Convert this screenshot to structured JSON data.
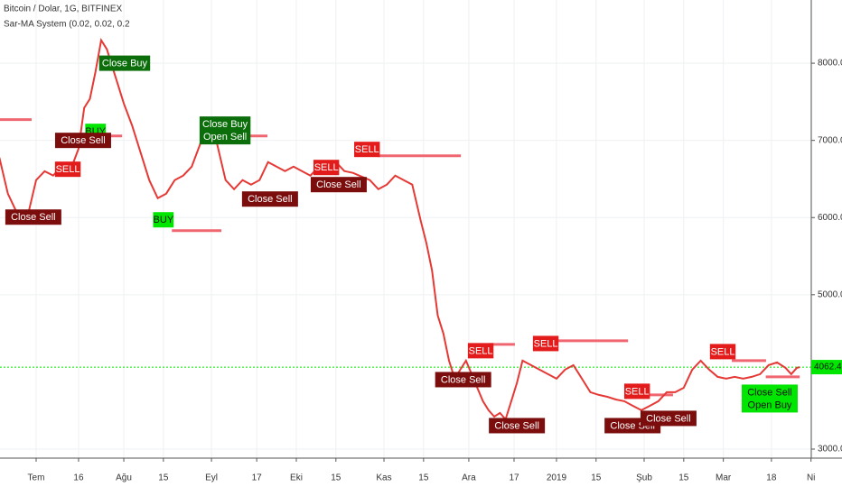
{
  "chart_data": {
    "type": "line",
    "title": "Bitcoin / Dolar, 1G, BITFINEX",
    "subtitle": "Sar-MA System (0.02, 0.02, 0.2",
    "x": [
      -13,
      -10,
      -7,
      -3,
      0,
      3,
      6,
      9,
      12,
      15,
      17,
      19,
      21,
      23,
      25,
      27,
      29,
      31,
      34,
      37,
      40,
      43,
      46,
      49,
      52,
      55,
      58,
      61,
      64,
      67,
      70,
      73,
      76,
      79,
      82,
      85,
      88,
      91,
      94,
      97,
      100,
      103,
      106,
      109,
      112,
      115,
      118,
      121,
      124,
      127,
      130,
      133,
      136,
      138,
      140,
      142,
      144,
      146,
      148,
      150,
      152,
      154,
      156,
      158,
      160,
      162,
      164,
      166,
      168,
      170,
      172,
      175,
      178,
      181,
      184,
      187,
      190,
      193,
      196,
      199,
      202,
      205,
      208,
      211,
      214,
      217,
      220,
      223,
      226,
      229,
      232,
      235,
      238,
      241,
      244,
      247,
      250,
      253,
      256,
      259,
      262,
      265,
      267,
      269,
      270
    ],
    "series": [
      {
        "color": "#e53935",
        "values": [
          6778,
          6310,
          6076,
          6018,
          6485,
          6600,
          6544,
          6660,
          6600,
          6895,
          7421,
          7538,
          7889,
          8298,
          8181,
          7947,
          7713,
          7480,
          7187,
          6836,
          6485,
          6251,
          6310,
          6485,
          6544,
          6660,
          6953,
          7070,
          6953,
          6485,
          6368,
          6485,
          6427,
          6485,
          6719,
          6660,
          6602,
          6660,
          6602,
          6544,
          6660,
          6626,
          6719,
          6602,
          6579,
          6532,
          6485,
          6368,
          6427,
          6544,
          6485,
          6427,
          5959,
          5667,
          5316,
          4731,
          4497,
          4146,
          3912,
          4029,
          4146,
          3971,
          3795,
          3620,
          3503,
          3421,
          3468,
          3386,
          3620,
          3854,
          4146,
          4088,
          4029,
          3971,
          3912,
          4029,
          4088,
          3912,
          3737,
          3702,
          3678,
          3643,
          3620,
          3561,
          3503,
          3561,
          3620,
          3737,
          3737,
          3795,
          4029,
          4146,
          4029,
          3936,
          3912,
          3936,
          3912,
          3936,
          3971,
          4088,
          4123,
          4053,
          3971,
          4053,
          4062
        ]
      }
    ],
    "xlim": [
      -12.78,
      274.1
    ],
    "ylim": [
      2883,
      8819
    ],
    "xticks": [
      {
        "value": 0,
        "label": "Tem"
      },
      {
        "value": 15,
        "label": "16"
      },
      {
        "value": 31,
        "label": "Ağu"
      },
      {
        "value": 45,
        "label": "15"
      },
      {
        "value": 62,
        "label": "Eyl"
      },
      {
        "value": 78,
        "label": "17"
      },
      {
        "value": 92,
        "label": "Eki"
      },
      {
        "value": 106,
        "label": "15"
      },
      {
        "value": 123,
        "label": "Kas"
      },
      {
        "value": 137,
        "label": "15"
      },
      {
        "value": 153,
        "label": "Ara"
      },
      {
        "value": 169,
        "label": "17"
      },
      {
        "value": 184,
        "label": "2019"
      },
      {
        "value": 198,
        "label": "15"
      },
      {
        "value": 215,
        "label": "Şub"
      },
      {
        "value": 229,
        "label": "15"
      },
      {
        "value": 243,
        "label": "Mar"
      },
      {
        "value": 260,
        "label": "18"
      },
      {
        "value": 274,
        "label": "Ni"
      }
    ],
    "yticks": [
      {
        "value": 3000,
        "label": "3000.0"
      },
      {
        "value": 5000,
        "label": "5000.0"
      },
      {
        "value": 6000,
        "label": "6000.0"
      },
      {
        "value": 7000,
        "label": "7000.0"
      },
      {
        "value": 8000,
        "label": "8000.0"
      }
    ],
    "grid": true,
    "current_price": 4062.4,
    "current_price_color": "#00e600",
    "sar_levels": [
      {
        "x": [
          -12.8,
          -1.6
        ],
        "y": 7269
      },
      {
        "x": [
          22.4,
          30.4
        ],
        "y": 7058
      },
      {
        "x": [
          48,
          65.5
        ],
        "y": 5830
      },
      {
        "x": [
          71.9,
          81.8
        ],
        "y": 7058
      },
      {
        "x": [
          120.8,
          150.2
        ],
        "y": 6801
      },
      {
        "x": [
          160.4,
          169.3
        ],
        "y": 4357
      },
      {
        "x": [
          183.4,
          209.3
        ],
        "y": 4404
      },
      {
        "x": [
          215.7,
          225.2
        ],
        "y": 3702
      },
      {
        "x": [
          246,
          258.1
        ],
        "y": 4146
      },
      {
        "x": [
          258,
          270
        ],
        "y": 3936
      }
    ],
    "sar_color": "#f06670",
    "signals": [
      {
        "lines": [
          "Close Buy"
        ],
        "x": 31.3,
        "y": 8000,
        "bg": "#0b6e0b"
      },
      {
        "lines": [
          "BUY"
        ],
        "x": 21,
        "y": 7117,
        "bg": "#00e600"
      },
      {
        "lines": [
          "Close Sell"
        ],
        "x": 16.6,
        "y": 7000,
        "bg": "#7b0d0d"
      },
      {
        "lines": [
          "SELL"
        ],
        "x": 11.2,
        "y": 6626,
        "bg": "#e31b1b"
      },
      {
        "lines": [
          "Close Sell"
        ],
        "x": -1,
        "y": 6006,
        "bg": "#7b0d0d"
      },
      {
        "lines": [
          "BUY"
        ],
        "x": 45,
        "y": 5971,
        "bg": "#00e600"
      },
      {
        "lines": [
          "Close Buy",
          "Open Sell"
        ],
        "x": 66.8,
        "y": 7129,
        "bg": "#0b6e0b"
      },
      {
        "lines": [
          "Close Sell"
        ],
        "x": 82.7,
        "y": 6240,
        "bg": "#7b0d0d"
      },
      {
        "lines": [
          "SELL"
        ],
        "x": 102.6,
        "y": 6649,
        "bg": "#e31b1b"
      },
      {
        "lines": [
          "Close Sell"
        ],
        "x": 107,
        "y": 6427,
        "bg": "#7b0d0d"
      },
      {
        "lines": [
          "SELL"
        ],
        "x": 117,
        "y": 6883,
        "bg": "#e31b1b"
      },
      {
        "lines": [
          "SELL"
        ],
        "x": 157.2,
        "y": 4275,
        "bg": "#e31b1b"
      },
      {
        "lines": [
          "Close Sell"
        ],
        "x": 151,
        "y": 3900,
        "bg": "#7b0d0d"
      },
      {
        "lines": [
          "SELL"
        ],
        "x": 180.2,
        "y": 4368,
        "bg": "#e31b1b"
      },
      {
        "lines": [
          "Close Sell"
        ],
        "x": 170,
        "y": 3304,
        "bg": "#7b0d0d"
      },
      {
        "lines": [
          "SELL"
        ],
        "x": 212.5,
        "y": 3749,
        "bg": "#e31b1b"
      },
      {
        "lines": [
          "Close Sell"
        ],
        "x": 210.9,
        "y": 3304,
        "bg": "#7b0d0d"
      },
      {
        "lines": [
          "Close Sell"
        ],
        "x": 223.6,
        "y": 3398,
        "bg": "#7b0d0d"
      },
      {
        "lines": [
          "SELL"
        ],
        "x": 242.8,
        "y": 4263,
        "bg": "#e31b1b"
      },
      {
        "lines": [
          "Close Sell",
          "Open Buy"
        ],
        "x": 259.4,
        "y": 3655,
        "bg": "#00e600"
      }
    ]
  }
}
